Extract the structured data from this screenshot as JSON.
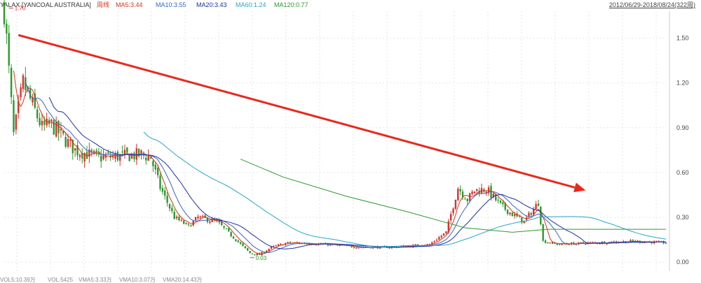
{
  "header": {
    "symbol": "YALAX [YANCOAL AUSTRALIA]",
    "period": "周线",
    "ma": [
      {
        "label": "MA5:3.44",
        "color": "#d4351c"
      },
      {
        "label": "MA10:3.55",
        "color": "#3a66c8"
      },
      {
        "label": "MA20:3.43",
        "color": "#1c2fa8"
      },
      {
        "label": "MA60:1.24",
        "color": "#27a6c9"
      },
      {
        "label": "MA120:0.77",
        "color": "#2e9a2e"
      }
    ],
    "date_range": "2012/06/29-2018/08/24(322周)"
  },
  "footer": {
    "labels": [
      "VOL5:10.39万",
      "VOL:5425",
      "VMA5:3.33万",
      "VMA10:3.07万",
      "VMA20:14.43万"
    ]
  },
  "chart_data": {
    "type": "candlestick",
    "x_range": [
      "2012/06/29",
      "2018/08/24"
    ],
    "y_ticks": [
      "1.50",
      "1.20",
      "0.90",
      "0.60",
      "0.30",
      "0.00"
    ],
    "ylim": [
      -0.06,
      1.68
    ],
    "grid": true,
    "colors": {
      "up": "#d9312b",
      "down": "#2a9a2a",
      "ma5": "#d4351c",
      "ma10": "#3a66c8",
      "ma20": "#1c2fa8",
      "ma60": "#27a6c9",
      "ma120": "#2e9a2e",
      "trend_arrow": "#e8291c"
    },
    "price_path": [
      [
        0,
        1.7
      ],
      [
        4,
        0.85
      ],
      [
        8,
        1.2
      ],
      [
        12,
        1.05
      ],
      [
        16,
        0.9
      ],
      [
        20,
        0.92
      ],
      [
        24,
        0.85
      ],
      [
        30,
        0.75
      ],
      [
        40,
        0.7
      ],
      [
        50,
        0.71
      ],
      [
        58,
        0.72
      ],
      [
        62,
        0.7
      ],
      [
        66,
        0.5
      ],
      [
        72,
        0.3
      ],
      [
        78,
        0.24
      ],
      [
        82,
        0.3
      ],
      [
        90,
        0.27
      ],
      [
        96,
        0.18
      ],
      [
        104,
        0.06
      ],
      [
        108,
        0.05
      ],
      [
        113,
        0.1
      ],
      [
        120,
        0.13
      ],
      [
        135,
        0.12
      ],
      [
        150,
        0.1
      ],
      [
        165,
        0.1
      ],
      [
        180,
        0.12
      ],
      [
        187,
        0.2
      ],
      [
        192,
        0.5
      ],
      [
        196,
        0.42
      ],
      [
        199,
        0.48
      ],
      [
        204,
        0.49
      ],
      [
        210,
        0.38
      ],
      [
        215,
        0.32
      ],
      [
        220,
        0.27
      ],
      [
        226,
        0.4
      ],
      [
        228,
        0.14
      ],
      [
        234,
        0.12
      ],
      [
        250,
        0.13
      ],
      [
        265,
        0.14
      ],
      [
        280,
        0.13
      ]
    ],
    "ma120": [
      [
        100,
        0.69
      ],
      [
        118,
        0.57
      ],
      [
        145,
        0.44
      ],
      [
        170,
        0.34
      ],
      [
        195,
        0.23
      ],
      [
        215,
        0.2
      ],
      [
        230,
        0.22
      ],
      [
        280,
        0.22
      ]
    ],
    "annotations": [
      {
        "text": "1.70",
        "x": 2,
        "y": 1.7,
        "color": "#d9312b"
      },
      {
        "text": "0.03",
        "x": 104,
        "y": 0.03,
        "color": "#2a9a2a"
      }
    ],
    "trend_arrow": {
      "from": [
        6,
        1.52
      ],
      "to": [
        246,
        0.48
      ]
    }
  }
}
